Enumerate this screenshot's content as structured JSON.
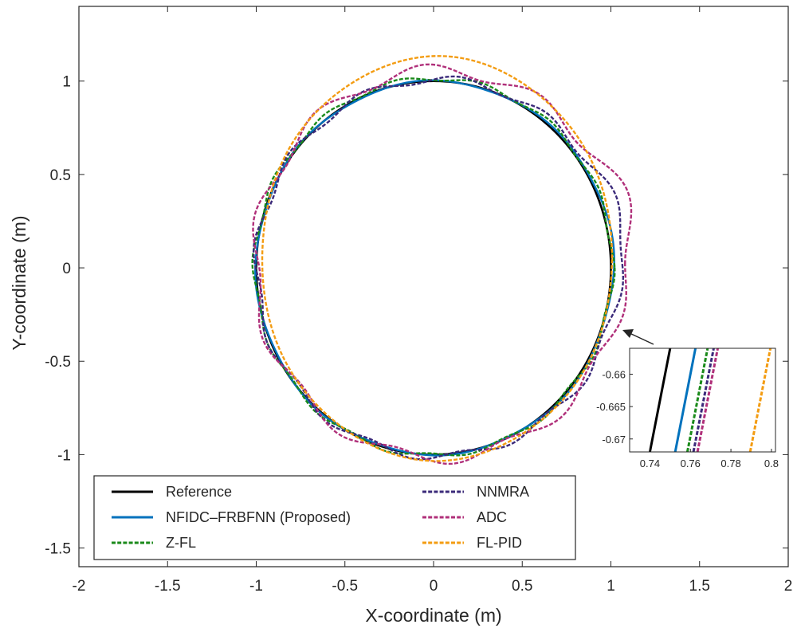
{
  "chart_data": {
    "type": "line",
    "title": "",
    "xlabel": "X-coordinate (m)",
    "ylabel": "Y-coordinate (m)",
    "xlim": [
      -2,
      2
    ],
    "ylim": [
      -1.6,
      1.4
    ],
    "xticks": [
      -2,
      -1.5,
      -1,
      -0.5,
      0,
      0.5,
      1,
      1.5,
      2
    ],
    "yticks": [
      -1.5,
      -1,
      -0.5,
      0,
      0.5,
      1
    ],
    "xtick_labels": [
      "-2",
      "-1.5",
      "-1",
      "-0.5",
      "0",
      "0.5",
      "1",
      "1.5",
      "2"
    ],
    "ytick_labels": [
      "-1.5",
      "-1",
      "-0.5",
      "0",
      "0.5",
      "1"
    ],
    "grid": false,
    "legend_position": "bottom-left",
    "series": [
      {
        "name": "Reference",
        "color": "#000000",
        "style": "solid",
        "shape": {
          "cx": 0,
          "cy": 0,
          "r": 1.0,
          "rx": 1.0,
          "ry": 1.0,
          "wobble": 0,
          "wobble_k": 0,
          "bulge": 0
        }
      },
      {
        "name": "NFIDC–FRBFNN (Proposed)",
        "color": "#0072BD",
        "style": "solid",
        "shape": {
          "cx": 0.004,
          "cy": 0.0,
          "r": 1.0,
          "rx": 1.005,
          "ry": 1.0,
          "wobble": 0.005,
          "wobble_k": 8,
          "bulge": 0.01
        }
      },
      {
        "name": "Z-FL",
        "color": "#1a8a1a",
        "style": "dotted",
        "shape": {
          "cx": 0.0,
          "cy": 0.005,
          "r": 1.0,
          "rx": 1.01,
          "ry": 1.01,
          "wobble": 0.012,
          "wobble_k": 14,
          "bulge": 0.0
        }
      },
      {
        "name": "NNMRA",
        "color": "#3b2a7a",
        "style": "dotted",
        "shape": {
          "cx": 0.02,
          "cy": 0.0,
          "r": 1.0,
          "rx": 1.02,
          "ry": 1.01,
          "wobble": 0.02,
          "wobble_k": 12,
          "bulge": 0.05
        }
      },
      {
        "name": "ADC",
        "color": "#b0307a",
        "style": "dotted",
        "shape": {
          "cx": 0.03,
          "cy": 0.02,
          "r": 1.0,
          "rx": 1.04,
          "ry": 1.04,
          "wobble": 0.03,
          "wobble_k": 10,
          "bulge": 0.07
        }
      },
      {
        "name": "FL-PID",
        "color": "#f39c12",
        "style": "dotted",
        "shape": {
          "cx": 0.02,
          "cy": 0.05,
          "r": 1.0,
          "rx": 0.99,
          "ry": 1.08,
          "wobble": 0.004,
          "wobble_k": 6,
          "bulge": 0.0
        }
      }
    ],
    "inset": {
      "xlim": [
        0.73,
        0.802
      ],
      "ylim": [
        -0.672,
        -0.656
      ],
      "xticks": [
        0.74,
        0.76,
        0.78,
        0.8
      ],
      "yticks": [
        -0.66,
        -0.665,
        -0.67
      ],
      "xtick_labels": [
        "0.74",
        "0.76",
        "0.78",
        "0.8"
      ],
      "ytick_labels": [
        "-0.66",
        "-0.665",
        "-0.67"
      ],
      "lines": [
        {
          "series": "Reference",
          "x_at_ymin": 0.74,
          "x_at_ymax": 0.75
        },
        {
          "series": "NFIDC–FRBFNN (Proposed)",
          "x_at_ymin": 0.7525,
          "x_at_ymax": 0.7625
        },
        {
          "series": "Z-FL",
          "x_at_ymin": 0.7585,
          "x_at_ymax": 0.7685
        },
        {
          "series": "NNMRA",
          "x_at_ymin": 0.7615,
          "x_at_ymax": 0.7715
        },
        {
          "series": "ADC",
          "x_at_ymin": 0.7635,
          "x_at_ymax": 0.7735
        },
        {
          "series": "FL-PID",
          "x_at_ymin": 0.7895,
          "x_at_ymax": 0.7995
        }
      ]
    }
  }
}
